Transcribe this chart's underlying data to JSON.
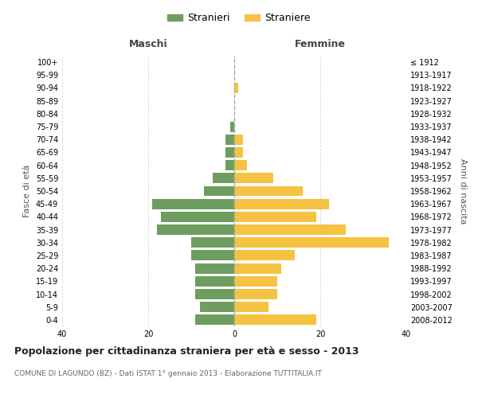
{
  "age_groups": [
    "0-4",
    "5-9",
    "10-14",
    "15-19",
    "20-24",
    "25-29",
    "30-34",
    "35-39",
    "40-44",
    "45-49",
    "50-54",
    "55-59",
    "60-64",
    "65-69",
    "70-74",
    "75-79",
    "80-84",
    "85-89",
    "90-94",
    "95-99",
    "100+"
  ],
  "birth_years": [
    "2008-2012",
    "2003-2007",
    "1998-2002",
    "1993-1997",
    "1988-1992",
    "1983-1987",
    "1978-1982",
    "1973-1977",
    "1968-1972",
    "1963-1967",
    "1958-1962",
    "1953-1957",
    "1948-1952",
    "1943-1947",
    "1938-1942",
    "1933-1937",
    "1928-1932",
    "1923-1927",
    "1918-1922",
    "1913-1917",
    "≤ 1912"
  ],
  "maschi": [
    9,
    8,
    9,
    9,
    9,
    10,
    10,
    18,
    17,
    19,
    7,
    5,
    2,
    2,
    2,
    1,
    0,
    0,
    0,
    0,
    0
  ],
  "femmine": [
    19,
    8,
    10,
    10,
    11,
    14,
    36,
    26,
    19,
    22,
    16,
    9,
    3,
    2,
    2,
    0,
    0,
    0,
    1,
    0,
    0
  ],
  "maschi_color": "#6e9e5f",
  "femmine_color": "#f5c242",
  "background_color": "#ffffff",
  "grid_color": "#cccccc",
  "title": "Popolazione per cittadinanza straniera per età e sesso - 2013",
  "subtitle": "COMUNE DI LAGUNDO (BZ) - Dati ISTAT 1° gennaio 2013 - Elaborazione TUTTITALIA.IT",
  "xlabel_left": "Maschi",
  "xlabel_right": "Femmine",
  "ylabel_left": "Fasce di età",
  "ylabel_right": "Anni di nascita",
  "legend_maschi": "Stranieri",
  "legend_femmine": "Straniere",
  "xlim": 40,
  "bar_height": 0.8
}
